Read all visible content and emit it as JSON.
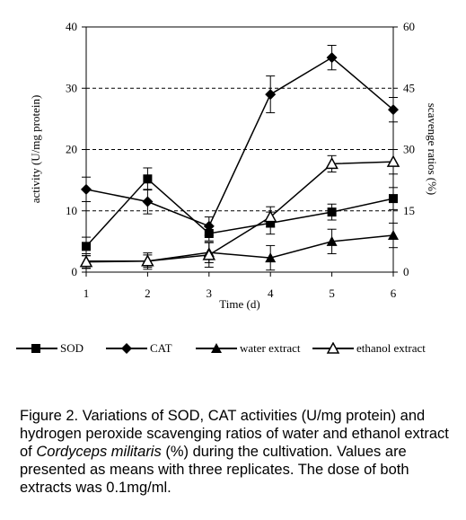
{
  "chart_data": {
    "type": "line",
    "x": [
      1,
      2,
      3,
      4,
      5,
      6
    ],
    "xlabel": "Time (d)",
    "ylabel": "activity (U/mg protein)",
    "y2label": "scavenge ratios (%)",
    "xlim": [
      1,
      6
    ],
    "ylim": [
      0,
      40
    ],
    "y2lim": [
      0,
      60
    ],
    "yticks": [
      0,
      10,
      20,
      30,
      40
    ],
    "y2ticks": [
      0,
      15,
      30,
      45,
      60
    ],
    "xticks": [
      1,
      2,
      3,
      4,
      5,
      6
    ],
    "grid": "dashed horizontal at right-axis ticks 15, 30, 45",
    "legend_position": "bottom",
    "series": [
      {
        "name": "SOD",
        "axis": "left",
        "marker": "filled-square",
        "values": [
          4.2,
          15.2,
          6.3,
          8.0,
          9.8,
          12.0
        ],
        "errors": [
          1.5,
          1.8,
          1.2,
          1.8,
          1.3,
          1.8
        ]
      },
      {
        "name": "CAT",
        "axis": "left",
        "marker": "filled-diamond",
        "values": [
          13.5,
          11.5,
          7.5,
          29.0,
          35.0,
          26.5
        ],
        "errors": [
          2.0,
          2.0,
          1.5,
          3.0,
          2.0,
          2.0
        ]
      },
      {
        "name": "water extract",
        "axis": "right",
        "marker": "filled-triangle",
        "values": [
          2.7,
          2.7,
          4.8,
          3.5,
          7.5,
          9.0
        ],
        "errors": [
          1.8,
          2.0,
          2.5,
          3.0,
          3.0,
          3.0
        ]
      },
      {
        "name": "ethanol extract",
        "axis": "right",
        "marker": "open-triangle",
        "values": [
          2.5,
          2.7,
          4.2,
          13.5,
          26.5,
          27.0
        ],
        "errors": [
          1.5,
          1.5,
          3.0,
          2.5,
          2.0,
          3.0
        ]
      }
    ]
  },
  "caption": {
    "part1": "Figure 2. Variations of SOD, CAT activities (U/mg protein) and hydrogen peroxide scavenging ratios of water and ethanol extract of ",
    "species": "Cordyceps militaris",
    "part2": " (%) during the cultivation. Values are presented as means with three replicates. The dose of both extracts was 0.1mg/ml."
  }
}
